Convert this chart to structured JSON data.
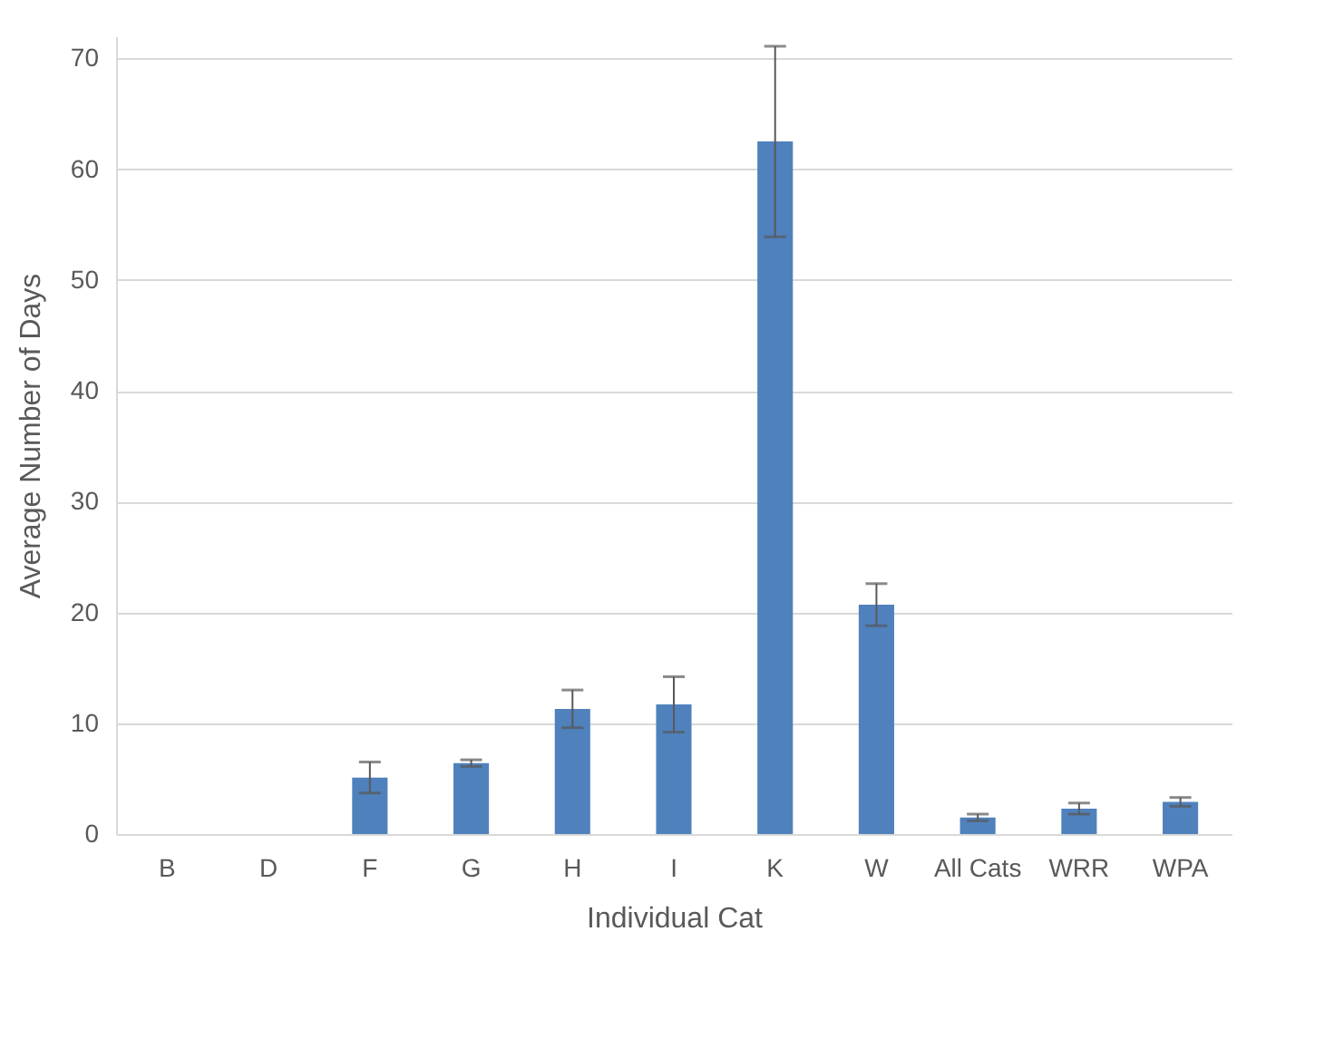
{
  "chart_data": {
    "type": "bar",
    "xlabel": "Individual Cat",
    "ylabel": "Average Number of Days",
    "categories": [
      "B",
      "D",
      "F",
      "G",
      "H",
      "I",
      "K",
      "W",
      "All Cats",
      "WRR",
      "WPA"
    ],
    "values": [
      0,
      0,
      5.1,
      6.4,
      11.3,
      11.7,
      62.5,
      20.7,
      1.5,
      2.3,
      2.9
    ],
    "errors": [
      null,
      null,
      1.4,
      0.3,
      1.7,
      2.5,
      8.6,
      1.9,
      0.3,
      0.5,
      0.4
    ],
    "color": "#4f81bd",
    "ylim": [
      0,
      72
    ],
    "yticks": [
      0,
      10,
      20,
      30,
      40,
      50,
      60,
      70
    ],
    "grid": "y"
  }
}
